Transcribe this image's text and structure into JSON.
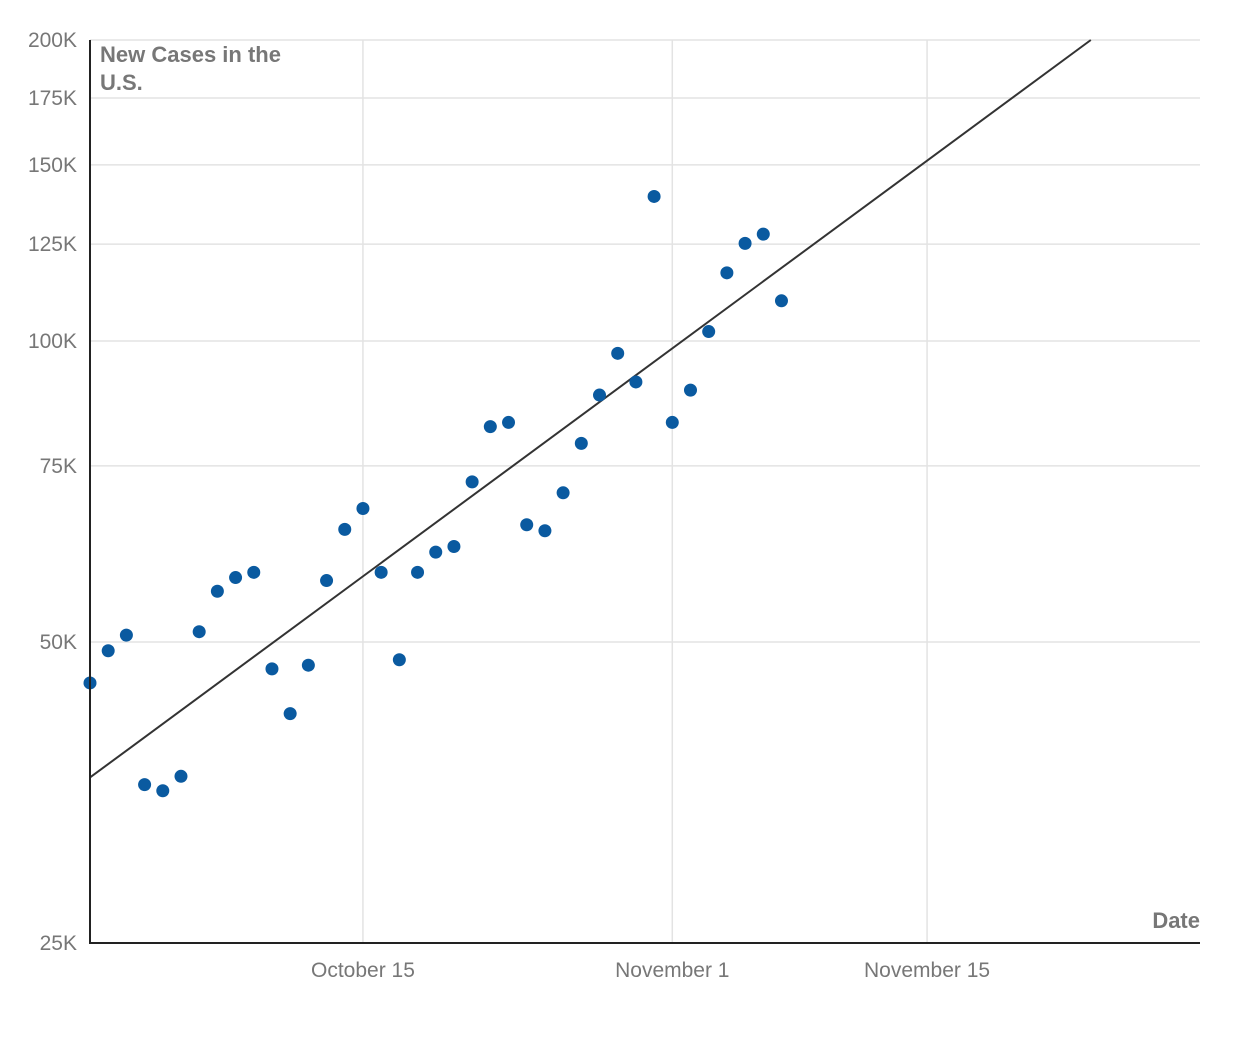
{
  "chart_data": {
    "type": "scatter",
    "title": "",
    "ylabel_lines": [
      "New Cases in the",
      "U.S."
    ],
    "xlabel": "Date",
    "y_scale": "log",
    "ylim": [
      25000,
      200000
    ],
    "xlim": [
      "2020-09-30",
      "2020-11-30"
    ],
    "grid": true,
    "y_ticks": [
      {
        "value": 25000,
        "label": "25K"
      },
      {
        "value": 50000,
        "label": "50K"
      },
      {
        "value": 75000,
        "label": "75K"
      },
      {
        "value": 100000,
        "label": "100K"
      },
      {
        "value": 125000,
        "label": "125K"
      },
      {
        "value": 150000,
        "label": "150K"
      },
      {
        "value": 175000,
        "label": "175K"
      },
      {
        "value": 200000,
        "label": "200K"
      }
    ],
    "x_ticks": [
      {
        "value": "2020-10-15",
        "label": "October 15"
      },
      {
        "value": "2020-11-01",
        "label": "November 1"
      },
      {
        "value": "2020-11-15",
        "label": "November 15"
      }
    ],
    "series": [
      {
        "color": "#0a5aa0",
        "points": [
          {
            "x": "2020-09-30",
            "y": 45500
          },
          {
            "x": "2020-10-01",
            "y": 49000
          },
          {
            "x": "2020-10-02",
            "y": 50800
          },
          {
            "x": "2020-10-03",
            "y": 36000
          },
          {
            "x": "2020-10-04",
            "y": 35500
          },
          {
            "x": "2020-10-05",
            "y": 36700
          },
          {
            "x": "2020-10-06",
            "y": 51200
          },
          {
            "x": "2020-10-07",
            "y": 56200
          },
          {
            "x": "2020-10-08",
            "y": 58000
          },
          {
            "x": "2020-10-09",
            "y": 58700
          },
          {
            "x": "2020-10-10",
            "y": 47000
          },
          {
            "x": "2020-10-11",
            "y": 42400
          },
          {
            "x": "2020-10-12",
            "y": 47400
          },
          {
            "x": "2020-10-13",
            "y": 57600
          },
          {
            "x": "2020-10-14",
            "y": 64800
          },
          {
            "x": "2020-10-15",
            "y": 68000
          },
          {
            "x": "2020-10-16",
            "y": 58700
          },
          {
            "x": "2020-10-17",
            "y": 48000
          },
          {
            "x": "2020-10-18",
            "y": 58700
          },
          {
            "x": "2020-10-19",
            "y": 61500
          },
          {
            "x": "2020-10-20",
            "y": 62300
          },
          {
            "x": "2020-10-21",
            "y": 72300
          },
          {
            "x": "2020-10-22",
            "y": 82100
          },
          {
            "x": "2020-10-23",
            "y": 82900
          },
          {
            "x": "2020-10-24",
            "y": 65500
          },
          {
            "x": "2020-10-25",
            "y": 64600
          },
          {
            "x": "2020-10-26",
            "y": 70500
          },
          {
            "x": "2020-10-27",
            "y": 79000
          },
          {
            "x": "2020-10-28",
            "y": 88300
          },
          {
            "x": "2020-10-29",
            "y": 97200
          },
          {
            "x": "2020-10-30",
            "y": 91000
          },
          {
            "x": "2020-10-31",
            "y": 139500
          },
          {
            "x": "2020-11-01",
            "y": 82900
          },
          {
            "x": "2020-11-02",
            "y": 89300
          },
          {
            "x": "2020-11-03",
            "y": 102200
          },
          {
            "x": "2020-11-04",
            "y": 117000
          },
          {
            "x": "2020-11-05",
            "y": 125200
          },
          {
            "x": "2020-11-06",
            "y": 127900
          },
          {
            "x": "2020-11-07",
            "y": 109700
          }
        ]
      }
    ],
    "trendline": {
      "start": {
        "x": "2020-09-30",
        "y": 36600
      },
      "end": {
        "x": "2020-11-24",
        "y": 200000
      }
    }
  }
}
